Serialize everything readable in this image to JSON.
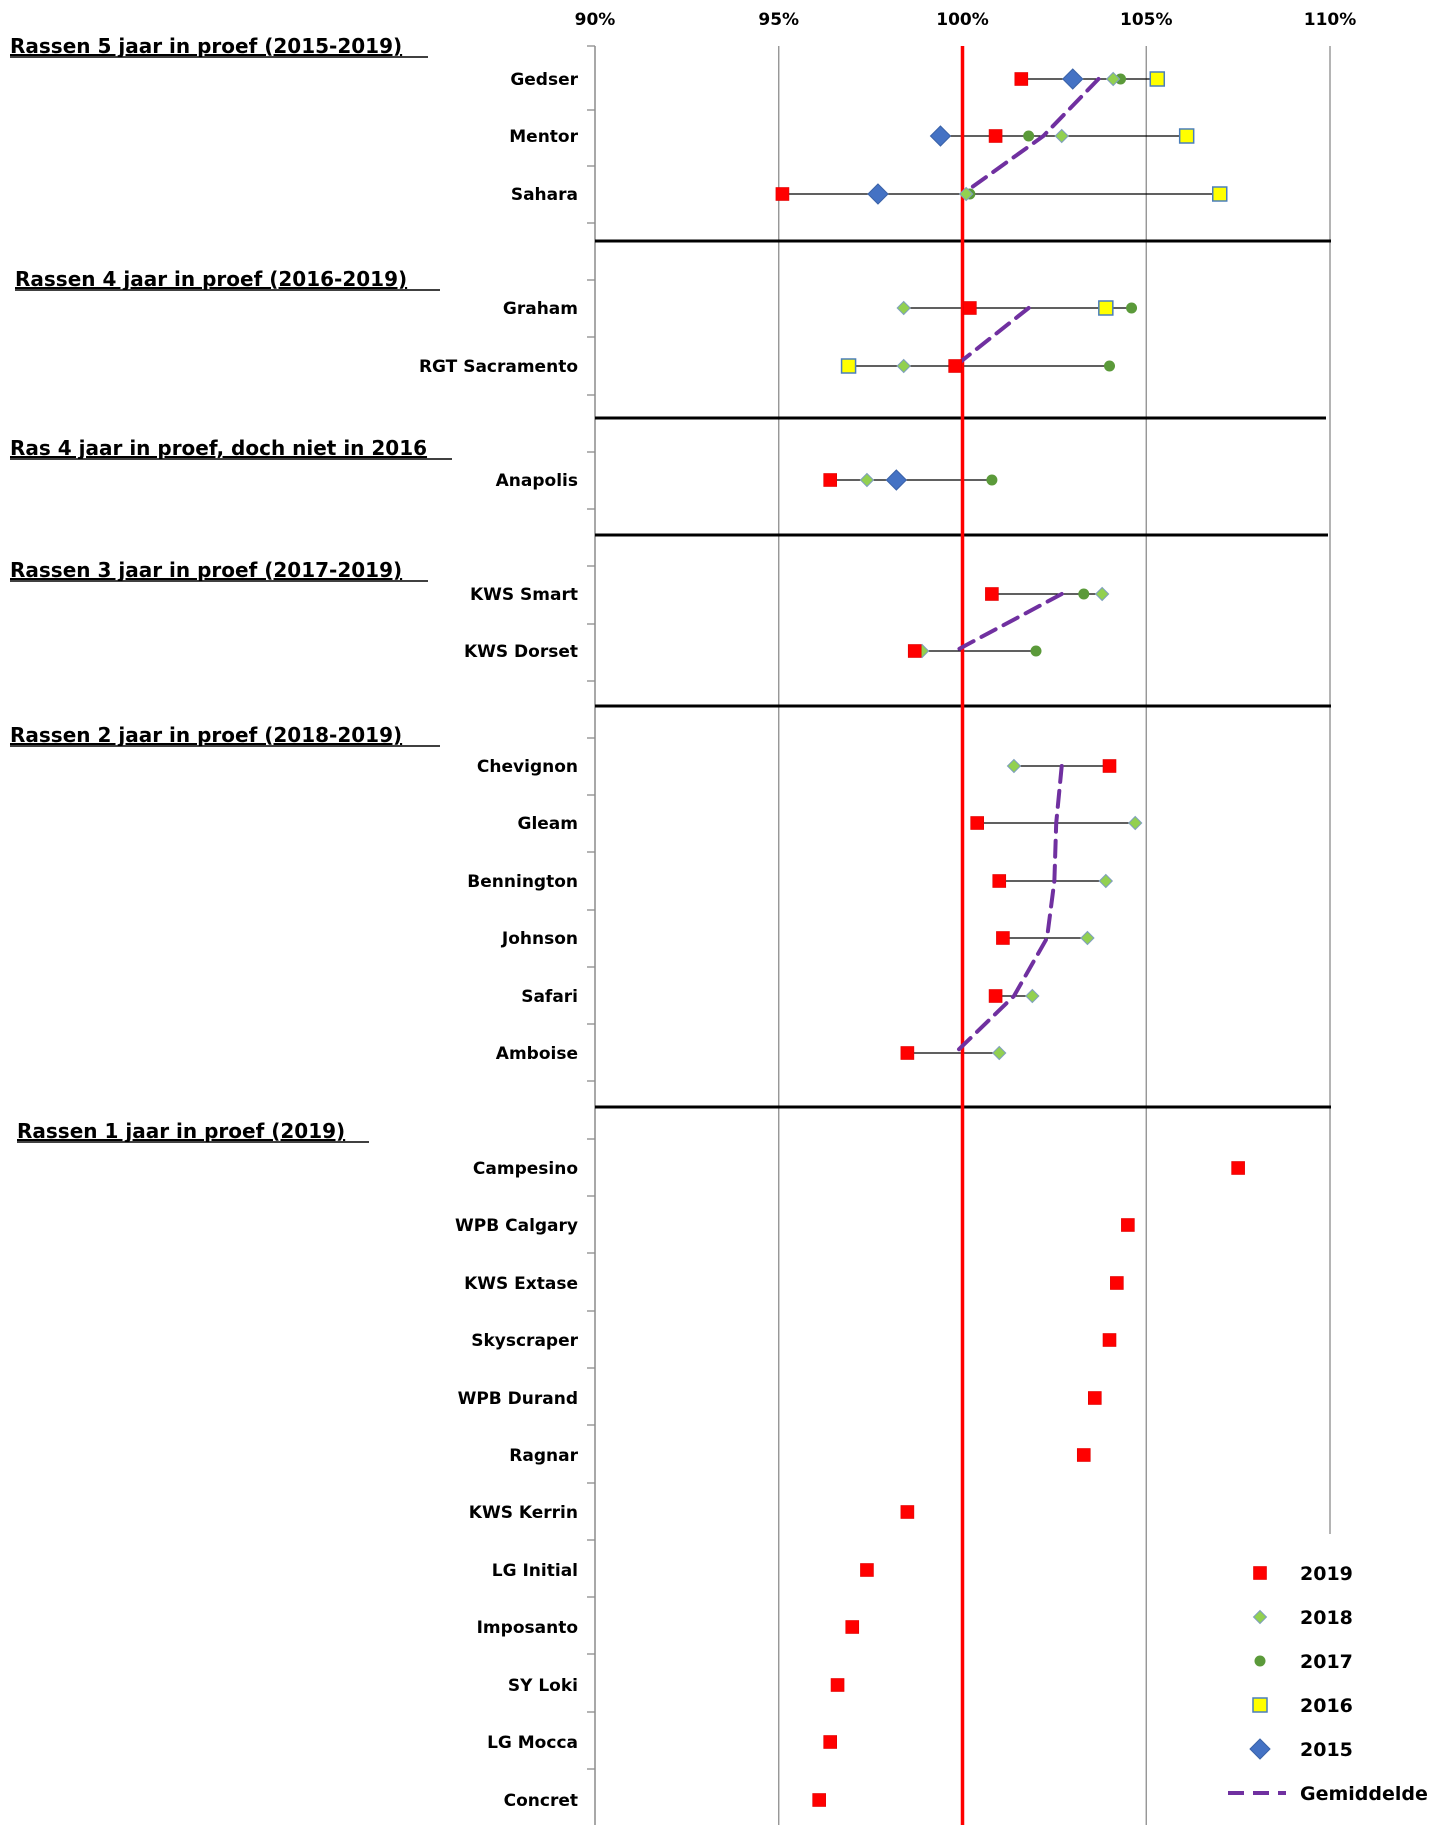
{
  "chart_data": {
    "type": "scatter",
    "x_axis": {
      "min": 90,
      "max": 110,
      "unit": "%",
      "ticks": [
        "90%",
        "95%",
        "100%",
        "105%",
        "110%"
      ],
      "tick_values": [
        90,
        95,
        100,
        105,
        110
      ]
    },
    "reference_line": {
      "value": 100,
      "color": "#ff0000"
    },
    "grid": true,
    "legend_position": "bottom-right",
    "legend": [
      {
        "key": "2019",
        "label": "2019",
        "marker": "square",
        "color": "#ff0000"
      },
      {
        "key": "2018",
        "label": "2018",
        "marker": "diamond-small",
        "color": "#92d050"
      },
      {
        "key": "2017",
        "label": "2017",
        "marker": "circle",
        "color": "#5b9a3a"
      },
      {
        "key": "2016",
        "label": "2016",
        "marker": "square-open",
        "color": "#ffff00"
      },
      {
        "key": "2015",
        "label": "2015",
        "marker": "diamond",
        "color": "#4472c4"
      },
      {
        "key": "avg",
        "label": "Gemiddelde",
        "marker": "dashed-line",
        "color": "#7030a0"
      }
    ],
    "groups": [
      {
        "title": "Rassen 5 jaar in proef (2015-2019)",
        "varieties": [
          {
            "name": "Gedser",
            "values": {
              "2019": 101.6,
              "2018": 104.1,
              "2017": 104.3,
              "2016": 105.3,
              "2015": 103.0
            },
            "avg": 103.7
          },
          {
            "name": "Mentor",
            "values": {
              "2019": 100.9,
              "2018": 102.7,
              "2017": 101.8,
              "2016": 106.1,
              "2015": 99.4
            },
            "avg": 102.2
          },
          {
            "name": "Sahara",
            "values": {
              "2019": 95.1,
              "2018": 100.1,
              "2017": 100.2,
              "2016": 107.0,
              "2015": 97.7
            },
            "avg": 100.0
          }
        ]
      },
      {
        "title": "Rassen 4 jaar in proef (2016-2019)",
        "varieties": [
          {
            "name": "Graham",
            "values": {
              "2019": 100.2,
              "2018": 98.4,
              "2017": 104.6,
              "2016": 103.9
            },
            "avg": 101.8
          },
          {
            "name": "RGT Sacramento",
            "values": {
              "2019": 99.8,
              "2018": 98.4,
              "2017": 104.0,
              "2016": 96.9
            },
            "avg": 99.8
          }
        ]
      },
      {
        "title": "Ras 4 jaar in proef, doch niet in 2016",
        "varieties": [
          {
            "name": "Anapolis",
            "values": {
              "2019": 96.4,
              "2018": 97.4,
              "2017": 100.8,
              "2015": 98.2
            }
          }
        ]
      },
      {
        "title": "Rassen 3 jaar in proef (2017-2019)",
        "varieties": [
          {
            "name": "KWS Smart",
            "values": {
              "2019": 100.8,
              "2018": 103.8,
              "2017": 103.3
            },
            "avg": 102.7
          },
          {
            "name": "KWS Dorset",
            "values": {
              "2019": 98.7,
              "2018": 98.9,
              "2017": 102.0
            },
            "avg": 99.8
          }
        ]
      },
      {
        "title": "Rassen 2 jaar in proef (2018-2019)",
        "varieties": [
          {
            "name": "Chevignon",
            "values": {
              "2019": 104.0,
              "2018": 101.4
            },
            "avg": 102.7
          },
          {
            "name": "Gleam",
            "values": {
              "2019": 100.4,
              "2018": 104.7
            },
            "avg": 102.55
          },
          {
            "name": "Bennington",
            "values": {
              "2019": 101.0,
              "2018": 103.9
            },
            "avg": 102.5
          },
          {
            "name": "Johnson",
            "values": {
              "2019": 101.1,
              "2018": 103.4
            },
            "avg": 102.3
          },
          {
            "name": "Safari",
            "values": {
              "2019": 100.9,
              "2018": 101.9
            },
            "avg": 101.4
          },
          {
            "name": "Amboise",
            "values": {
              "2019": 98.5,
              "2018": 101.0
            },
            "avg": 99.8
          }
        ]
      },
      {
        "title": "Rassen 1 jaar in proef (2019)",
        "varieties": [
          {
            "name": "Campesino",
            "values": {
              "2019": 107.5
            }
          },
          {
            "name": "WPB Calgary",
            "values": {
              "2019": 104.5
            }
          },
          {
            "name": "KWS Extase",
            "values": {
              "2019": 104.2
            }
          },
          {
            "name": "Skyscraper",
            "values": {
              "2019": 104.0
            }
          },
          {
            "name": "WPB Durand",
            "values": {
              "2019": 103.6
            }
          },
          {
            "name": "Ragnar",
            "values": {
              "2019": 103.3
            }
          },
          {
            "name": "KWS Kerrin",
            "values": {
              "2019": 98.5
            }
          },
          {
            "name": "LG Initial",
            "values": {
              "2019": 97.4
            }
          },
          {
            "name": "Imposanto",
            "values": {
              "2019": 97.0
            }
          },
          {
            "name": "SY Loki",
            "values": {
              "2019": 96.6
            }
          },
          {
            "name": "LG Mocca",
            "values": {
              "2019": 96.4
            }
          },
          {
            "name": "Concret",
            "values": {
              "2019": 96.1
            }
          }
        ]
      }
    ]
  }
}
